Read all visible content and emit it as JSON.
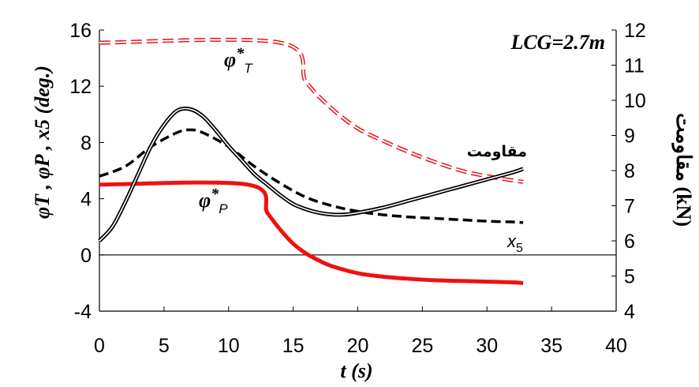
{
  "chart_data": {
    "type": "line",
    "title": "LCG=2.7m",
    "xlabel": "t (s)",
    "ylabel_left": "φT , φP , x5 (deg.)",
    "ylabel_right": "مقاومت (kN)",
    "xlim": [
      0,
      40
    ],
    "ylim_left": [
      -4,
      16
    ],
    "ylim_right": [
      4,
      12
    ],
    "x_ticks": [
      "0",
      "5",
      "10",
      "15",
      "20",
      "25",
      "30",
      "35",
      "40"
    ],
    "y_ticks_left": [
      "-4",
      "0",
      "4",
      "8",
      "12",
      "16"
    ],
    "y_ticks_right": [
      "4",
      "5",
      "6",
      "7",
      "8",
      "9",
      "10",
      "11",
      "12"
    ],
    "grid": false,
    "series": [
      {
        "name": "φ*T",
        "axis": "left",
        "color": "#e8131c",
        "style": "dashed-double",
        "x": [
          0,
          14,
          16,
          18,
          20,
          22,
          24,
          26,
          28,
          30,
          32,
          32.8
        ],
        "y": [
          15.1,
          15.1,
          12.3,
          10.4,
          9.0,
          8.1,
          7.3,
          6.6,
          6.0,
          5.6,
          5.3,
          5.2
        ]
      },
      {
        "name": "φ*P",
        "axis": "left",
        "color": "#ee1111",
        "style": "solid-thick",
        "x": [
          0,
          11.5,
          13,
          14,
          15,
          16,
          17,
          18,
          20,
          22,
          24,
          26,
          28,
          30,
          32,
          32.8
        ],
        "y": [
          5.0,
          5.0,
          3.0,
          1.8,
          0.8,
          0.1,
          -0.4,
          -0.8,
          -1.3,
          -1.55,
          -1.7,
          -1.8,
          -1.85,
          -1.9,
          -1.95,
          -2.0
        ]
      },
      {
        "name": "x5",
        "axis": "left",
        "color": "#000000",
        "style": "dashed",
        "x": [
          0,
          2,
          4,
          6,
          7,
          8,
          10,
          12,
          14,
          16,
          18,
          20,
          22,
          24,
          26,
          28,
          30,
          32,
          32.8
        ],
        "y": [
          5.6,
          6.3,
          7.7,
          8.7,
          8.9,
          8.7,
          7.7,
          6.3,
          5.1,
          4.1,
          3.5,
          3.1,
          2.85,
          2.7,
          2.6,
          2.5,
          2.4,
          2.35,
          2.3
        ]
      },
      {
        "name": "مقاومت",
        "axis": "right",
        "color": "#000000",
        "style": "double",
        "x": [
          0,
          1,
          2,
          3,
          4,
          5,
          6,
          7,
          8,
          9,
          10,
          11,
          12,
          13,
          14,
          15,
          16,
          17,
          18,
          19,
          20,
          22,
          24,
          26,
          28,
          30,
          32,
          32.8
        ],
        "y": [
          6.0,
          6.4,
          7.1,
          7.9,
          8.7,
          9.3,
          9.7,
          9.75,
          9.55,
          9.15,
          8.7,
          8.3,
          7.9,
          7.6,
          7.3,
          7.05,
          6.9,
          6.8,
          6.75,
          6.75,
          6.8,
          6.95,
          7.15,
          7.35,
          7.55,
          7.75,
          7.95,
          8.05
        ]
      }
    ],
    "annotations": {
      "lcg": "LCG=2.7m",
      "phiT_main": "φ",
      "phiT_star": "*",
      "phiT_sub": "T",
      "phiP_main": "φ",
      "phiP_star": "*",
      "phiP_sub": "P",
      "resistance": "مقاومت",
      "x5_main": "x",
      "x5_sub": "5"
    }
  }
}
